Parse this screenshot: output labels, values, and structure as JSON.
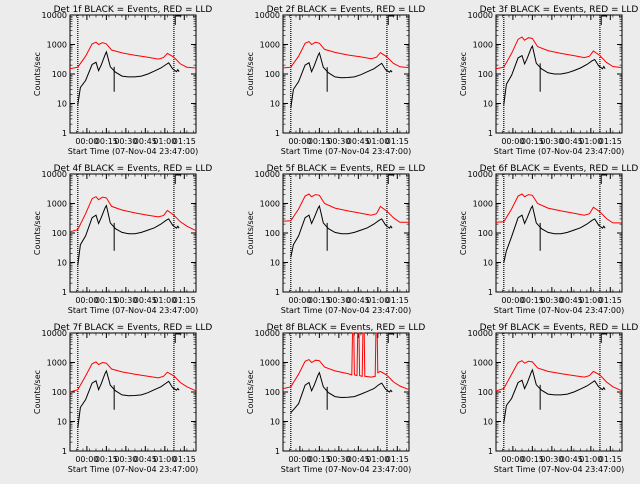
{
  "chart_data": {
    "type": "line",
    "layout": "3x3 grid",
    "xlabel": "Start Time (07-Nov-04 23:47:00)",
    "ylabel": "Counts/sec",
    "x_tick_labels": [
      "00:00",
      "00:15",
      "00:30",
      "00:45",
      "01:00",
      "01:15"
    ],
    "x_ticks_min": [
      13,
      28,
      43,
      58,
      73,
      88
    ],
    "xlim_min": [
      0,
      97
    ],
    "y_scale": "log",
    "ylim": [
      1,
      10000
    ],
    "y_tick_labels": [
      "1",
      "10",
      "100",
      "1000",
      "10000"
    ],
    "vertical_markers_min": [
      6,
      80
    ],
    "bracket_marker_min": 81,
    "colors": {
      "events": "#000000",
      "lld": "#ff0000",
      "axes": "#000000",
      "background": "#ececec"
    },
    "panels": [
      {
        "title": "Det 1f BLACK = Events, RED = LLD",
        "series": [
          {
            "name": "Events",
            "color": "#000000",
            "x": [
              6,
              8,
              12,
              17,
              20,
              22,
              24,
              27,
              28,
              31,
              35,
              40,
              45,
              50,
              55,
              60,
              65,
              70,
              74,
              76,
              79,
              82,
              83,
              84
            ],
            "y": [
              9,
              35,
              60,
              210,
              250,
              130,
              200,
              450,
              560,
              175,
              115,
              85,
              80,
              80,
              85,
              100,
              125,
              160,
              210,
              240,
              150,
              120,
              140,
              120
            ]
          },
          {
            "name": "LLD",
            "color": "#ff0000",
            "x": [
              0,
              6,
              12,
              17,
              20,
              22,
              25,
              28,
              32,
              40,
              50,
              60,
              68,
              72,
              75,
              80,
              85,
              90,
              97
            ],
            "y": [
              150,
              170,
              400,
              1050,
              1200,
              1000,
              1150,
              1050,
              650,
              520,
              430,
              370,
              320,
              360,
              500,
              370,
              220,
              170,
              160
            ]
          }
        ]
      },
      {
        "title": "Det 2f BLACK = Events, RED = LLD",
        "series": [
          {
            "name": "Events",
            "color": "#000000",
            "x": [
              6,
              8,
              12,
              17,
              20,
              22,
              24,
              27,
              28,
              31,
              35,
              40,
              45,
              50,
              55,
              60,
              65,
              70,
              74,
              76,
              79,
              82,
              83,
              84
            ],
            "y": [
              7,
              30,
              55,
              200,
              240,
              120,
              190,
              430,
              520,
              170,
              110,
              80,
              75,
              76,
              80,
              95,
              120,
              150,
              200,
              230,
              140,
              115,
              130,
              115
            ]
          },
          {
            "name": "LLD",
            "color": "#ff0000",
            "x": [
              0,
              6,
              12,
              17,
              20,
              22,
              25,
              28,
              32,
              40,
              50,
              60,
              68,
              72,
              75,
              80,
              85,
              90,
              97
            ],
            "y": [
              160,
              170,
              400,
              1100,
              1250,
              1000,
              1200,
              1100,
              680,
              540,
              440,
              380,
              330,
              370,
              530,
              380,
              230,
              175,
              165
            ]
          }
        ]
      },
      {
        "title": "Det 3f BLACK = Events, RED = LLD",
        "series": [
          {
            "name": "Events",
            "color": "#000000",
            "x": [
              6,
              8,
              12,
              17,
              20,
              22,
              24,
              27,
              28,
              31,
              35,
              40,
              45,
              50,
              55,
              60,
              65,
              70,
              74,
              76,
              79,
              82,
              83,
              84
            ],
            "y": [
              9,
              45,
              90,
              350,
              420,
              220,
              340,
              750,
              880,
              230,
              150,
              110,
              100,
              100,
              110,
              130,
              160,
              210,
              280,
              310,
              190,
              150,
              180,
              150
            ]
          },
          {
            "name": "LLD",
            "color": "#ff0000",
            "x": [
              0,
              6,
              12,
              17,
              20,
              22,
              25,
              28,
              32,
              40,
              50,
              60,
              68,
              72,
              75,
              80,
              85,
              90,
              97
            ],
            "y": [
              150,
              170,
              500,
              1500,
              1800,
              1400,
              1700,
              1600,
              850,
              620,
              500,
              420,
              360,
              400,
              600,
              420,
              250,
              180,
              165
            ]
          }
        ]
      },
      {
        "title": "Det 4f BLACK = Events, RED = LLD",
        "series": [
          {
            "name": "Events",
            "color": "#000000",
            "x": [
              6,
              8,
              12,
              17,
              20,
              22,
              24,
              27,
              28,
              31,
              35,
              40,
              45,
              50,
              55,
              60,
              65,
              70,
              74,
              76,
              79,
              82,
              83,
              84
            ],
            "y": [
              8,
              40,
              80,
              330,
              400,
              210,
              330,
              720,
              850,
              220,
              140,
              105,
              95,
              95,
              105,
              125,
              150,
              200,
              270,
              300,
              185,
              145,
              170,
              145
            ]
          },
          {
            "name": "LLD",
            "color": "#ff0000",
            "x": [
              0,
              6,
              12,
              17,
              20,
              22,
              25,
              28,
              32,
              40,
              50,
              60,
              68,
              72,
              75,
              80,
              85,
              90,
              97
            ],
            "y": [
              110,
              130,
              450,
              1450,
              1700,
              1350,
              1650,
              1550,
              800,
              600,
              480,
              400,
              350,
              390,
              580,
              400,
              240,
              170,
              120
            ]
          }
        ]
      },
      {
        "title": "Det 5f BLACK = Events, RED = LLD",
        "series": [
          {
            "name": "Events",
            "color": "#000000",
            "x": [
              6,
              8,
              12,
              17,
              20,
              22,
              24,
              27,
              28,
              31,
              35,
              40,
              45,
              50,
              55,
              60,
              65,
              70,
              74,
              76,
              79,
              82,
              83,
              84
            ],
            "y": [
              15,
              40,
              80,
              330,
              400,
              210,
              330,
              700,
              820,
              220,
              140,
              105,
              95,
              95,
              105,
              125,
              150,
              200,
              270,
              300,
              185,
              145,
              170,
              145
            ]
          },
          {
            "name": "LLD",
            "color": "#ff0000",
            "x": [
              0,
              6,
              12,
              17,
              20,
              22,
              25,
              28,
              32,
              40,
              50,
              60,
              68,
              72,
              75,
              80,
              85,
              90,
              97
            ],
            "y": [
              250,
              260,
              650,
              1800,
              2100,
              1700,
              2000,
              1900,
              1000,
              700,
              560,
              470,
              400,
              450,
              800,
              550,
              330,
              230,
              230
            ]
          }
        ]
      },
      {
        "title": "Det 6f BLACK = Events, RED = LLD",
        "series": [
          {
            "name": "Events",
            "color": "#000000",
            "x": [
              6,
              8,
              12,
              17,
              20,
              22,
              24,
              27,
              28,
              31,
              35,
              40,
              45,
              50,
              55,
              60,
              65,
              70,
              74,
              76,
              79,
              82,
              83,
              84
            ],
            "y": [
              10,
              25,
              75,
              330,
              400,
              210,
              330,
              700,
              820,
              220,
              140,
              105,
              95,
              95,
              105,
              125,
              150,
              200,
              270,
              300,
              185,
              145,
              170,
              145
            ]
          },
          {
            "name": "LLD",
            "color": "#ff0000",
            "x": [
              0,
              6,
              12,
              17,
              20,
              22,
              25,
              28,
              32,
              40,
              50,
              60,
              68,
              72,
              75,
              80,
              85,
              90,
              97
            ],
            "y": [
              230,
              240,
              650,
              1800,
              2100,
              1700,
              2000,
              1900,
              1000,
              700,
              560,
              470,
              400,
              450,
              750,
              520,
              310,
              220,
              220
            ]
          }
        ]
      },
      {
        "title": "Det 7f BLACK = Events, RED = LLD",
        "series": [
          {
            "name": "Events",
            "color": "#000000",
            "x": [
              6,
              8,
              12,
              17,
              20,
              22,
              24,
              27,
              28,
              31,
              35,
              40,
              45,
              50,
              55,
              60,
              65,
              70,
              74,
              76,
              79,
              82,
              83,
              84
            ],
            "y": [
              6,
              30,
              55,
              200,
              240,
              120,
              190,
              430,
              520,
              170,
              110,
              80,
              75,
              76,
              80,
              95,
              120,
              150,
              200,
              230,
              140,
              115,
              130,
              115
            ]
          },
          {
            "name": "LLD",
            "color": "#ff0000",
            "x": [
              0,
              6,
              12,
              17,
              20,
              22,
              25,
              28,
              32,
              40,
              50,
              60,
              68,
              72,
              75,
              80,
              85,
              90,
              97
            ],
            "y": [
              100,
              120,
              350,
              900,
              1050,
              850,
              1000,
              950,
              600,
              480,
              400,
              340,
              300,
              340,
              470,
              350,
              210,
              150,
              110
            ]
          }
        ]
      },
      {
        "title": "Det 8f BLACK = Events, RED = LLD",
        "series": [
          {
            "name": "Events",
            "color": "#000000",
            "x": [
              6,
              8,
              12,
              17,
              20,
              22,
              24,
              27,
              28,
              31,
              35,
              40,
              45,
              50,
              55,
              60,
              65,
              70,
              74,
              76,
              79,
              82,
              83,
              84
            ],
            "y": [
              20,
              25,
              40,
              170,
              210,
              110,
              170,
              380,
              450,
              150,
              95,
              70,
              65,
              66,
              70,
              85,
              105,
              130,
              180,
              200,
              125,
              100,
              115,
              100
            ]
          },
          {
            "name": "LLD",
            "color": "#ff0000",
            "x": [
              0,
              6,
              12,
              17,
              20,
              22,
              25,
              28,
              32,
              40,
              50,
              53,
              53.5,
              54.5,
              55,
              57,
              57.5,
              58.5,
              59,
              61,
              61.5,
              62.5,
              63,
              68,
              71,
              71.5,
              72.5,
              73,
              75,
              80,
              85,
              90,
              97
            ],
            "y": [
              130,
              150,
              400,
              1100,
              1250,
              1000,
              1200,
              1150,
              700,
              520,
              420,
              380,
              10000,
              10000,
              380,
              360,
              10000,
              10000,
              360,
              340,
              10000,
              10000,
              340,
              320,
              340,
              10000,
              10000,
              450,
              500,
              370,
              220,
              160,
              120
            ]
          }
        ]
      },
      {
        "title": "Det 9f BLACK = Events, RED = LLD",
        "series": [
          {
            "name": "Events",
            "color": "#000000",
            "x": [
              6,
              8,
              12,
              17,
              20,
              22,
              24,
              27,
              28,
              31,
              35,
              40,
              45,
              50,
              55,
              60,
              65,
              70,
              74,
              76,
              79,
              82,
              83,
              84
            ],
            "y": [
              9,
              35,
              60,
              210,
              250,
              130,
              200,
              450,
              560,
              175,
              115,
              85,
              80,
              80,
              85,
              100,
              125,
              160,
              210,
              240,
              150,
              120,
              140,
              120
            ]
          },
          {
            "name": "LLD",
            "color": "#ff0000",
            "x": [
              0,
              6,
              12,
              17,
              20,
              22,
              25,
              28,
              32,
              40,
              50,
              60,
              68,
              72,
              75,
              80,
              85,
              90,
              97
            ],
            "y": [
              110,
              130,
              400,
              1000,
              1150,
              950,
              1100,
              1050,
              650,
              500,
              420,
              360,
              320,
              360,
              500,
              380,
              220,
              150,
              110
            ]
          }
        ]
      }
    ]
  }
}
